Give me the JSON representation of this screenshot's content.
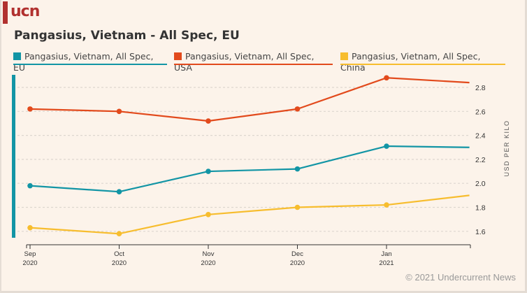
{
  "logo": "ucn",
  "title": "Pangasius, Vietnam - All Spec, EU",
  "credit": "© 2021 Undercurrent News",
  "colors": {
    "eu": "#1295a5",
    "usa": "#e24a1c",
    "china": "#f7bd2e",
    "background": "#fcf3ea"
  },
  "chart_data": {
    "type": "line",
    "title": "Pangasius, Vietnam - All Spec, EU",
    "xlabel": "",
    "ylabel": "USD PER KILO",
    "ylim": [
      1.52,
      2.92
    ],
    "yticks": [
      "1.6",
      "1.8",
      "2.0",
      "2.2",
      "2.4",
      "2.6",
      "2.8"
    ],
    "ytick_values": [
      1.6,
      1.8,
      2.0,
      2.2,
      2.4,
      2.6,
      2.8
    ],
    "xticks": [
      {
        "month": "Sep",
        "year": "2020"
      },
      {
        "month": "Oct",
        "year": "2020"
      },
      {
        "month": "Nov",
        "year": "2020"
      },
      {
        "month": "Dec",
        "year": "2020"
      },
      {
        "month": "Jan",
        "year": "2021"
      }
    ],
    "x": [
      "2020-09",
      "2020-10",
      "2020-11",
      "2020-12",
      "2021-01",
      "2021-02"
    ],
    "x_index": [
      0,
      1,
      2,
      3,
      4,
      4.93
    ],
    "grid": true,
    "legend_position": "top",
    "series": [
      {
        "name": "Pangasius, Vietnam, All Spec, EU",
        "key": "eu",
        "color": "#1295a5",
        "values": [
          1.98,
          1.93,
          2.1,
          2.12,
          2.31,
          2.3
        ],
        "markers": [
          true,
          true,
          true,
          true,
          true,
          false
        ]
      },
      {
        "name": "Pangasius, Vietnam, All Spec, USA",
        "key": "usa",
        "color": "#e24a1c",
        "values": [
          2.62,
          2.6,
          2.52,
          2.62,
          2.88,
          2.84
        ],
        "markers": [
          true,
          true,
          true,
          true,
          true,
          false
        ]
      },
      {
        "name": "Pangasius, Vietnam, All Spec, China",
        "key": "china",
        "color": "#f7bd2e",
        "values": [
          1.63,
          1.58,
          1.74,
          1.8,
          1.82,
          1.9
        ],
        "markers": [
          true,
          true,
          true,
          true,
          true,
          false
        ]
      }
    ]
  }
}
